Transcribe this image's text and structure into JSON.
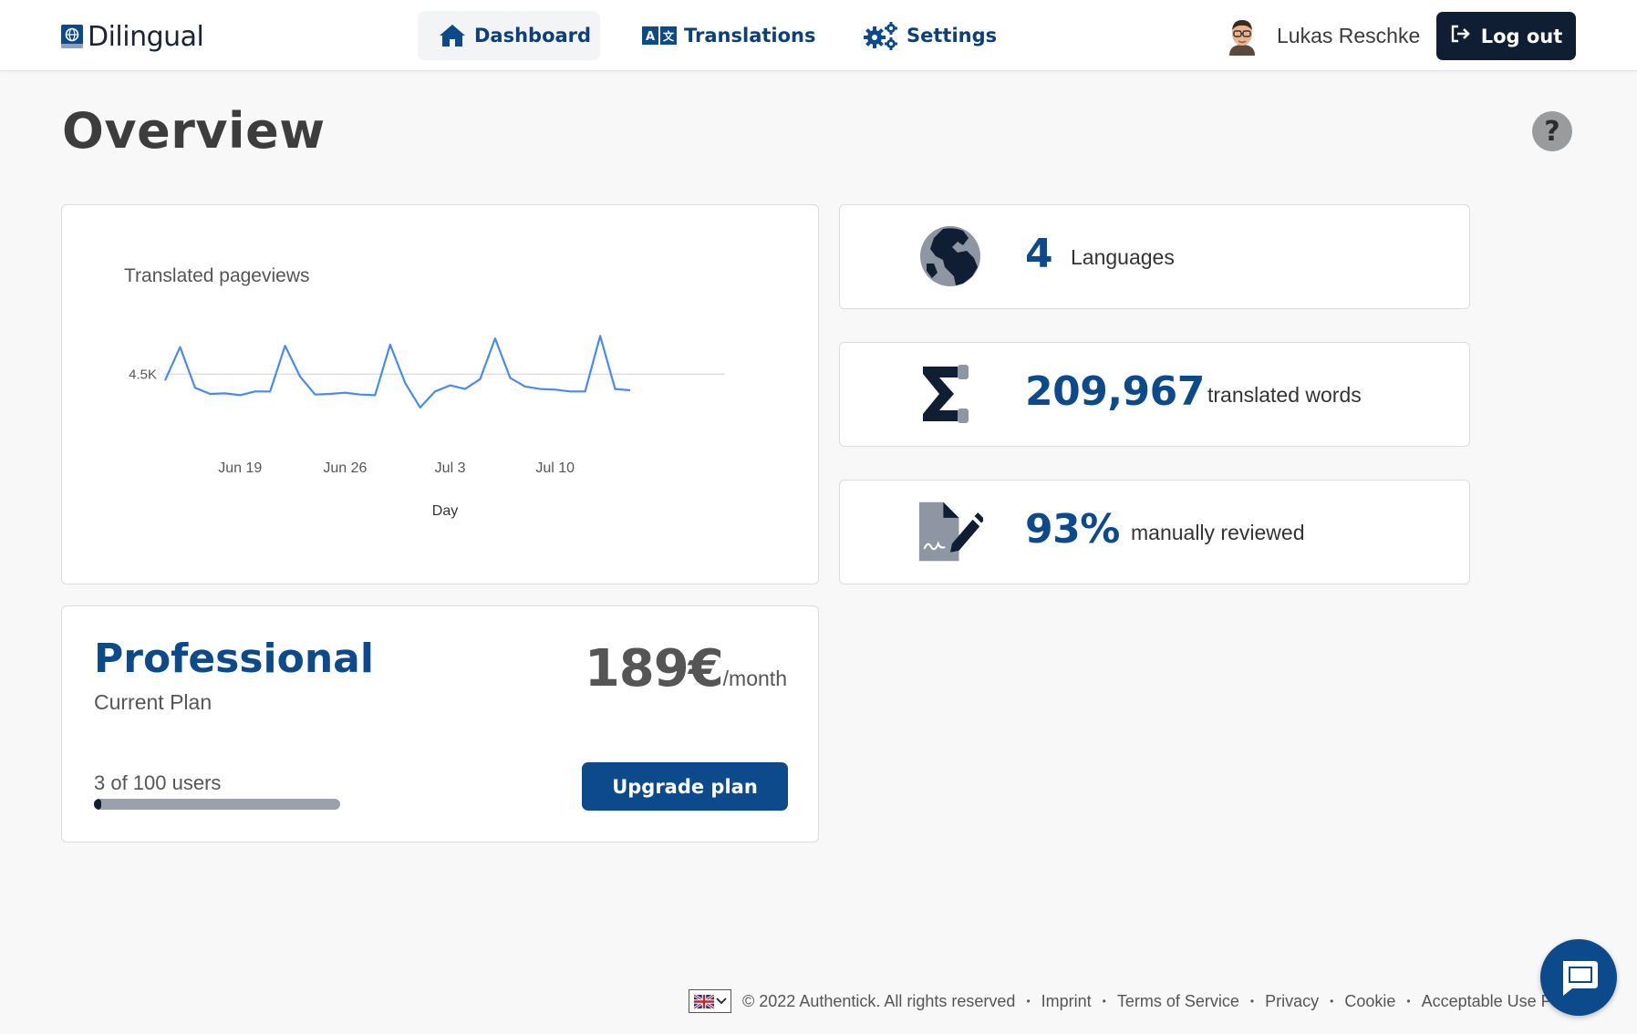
{
  "header": {
    "logo_text": "Dilingual",
    "nav": [
      {
        "label": "Dashboard",
        "icon": "home-icon",
        "active": true
      },
      {
        "label": "Translations",
        "icon": "translate-icon",
        "active": false
      },
      {
        "label": "Settings",
        "icon": "gears-icon",
        "active": false
      }
    ],
    "user_name": "Lukas Reschke",
    "logout_label": "Log out"
  },
  "page": {
    "title": "Overview",
    "help_label": "?"
  },
  "chart_card": {
    "title": "Translated pageviews"
  },
  "chart_data": {
    "type": "line",
    "title": "Translated pageviews",
    "xlabel": "Day",
    "ylabel": "",
    "x": [
      "Jun 14",
      "Jun 15",
      "Jun 16",
      "Jun 17",
      "Jun 18",
      "Jun 19",
      "Jun 20",
      "Jun 21",
      "Jun 22",
      "Jun 23",
      "Jun 24",
      "Jun 25",
      "Jun 26",
      "Jun 27",
      "Jun 28",
      "Jun 29",
      "Jun 30",
      "Jul 1",
      "Jul 2",
      "Jul 3",
      "Jul 4",
      "Jul 5",
      "Jul 6",
      "Jul 7",
      "Jul 8",
      "Jul 9",
      "Jul 10",
      "Jul 11",
      "Jul 12",
      "Jul 13",
      "Jul 14",
      "Jul 15"
    ],
    "values": [
      4450,
      4720,
      4390,
      4340,
      4345,
      4330,
      4360,
      4360,
      4730,
      4480,
      4335,
      4340,
      4350,
      4335,
      4330,
      4740,
      4430,
      4230,
      4360,
      4410,
      4380,
      4460,
      4790,
      4470,
      4400,
      4380,
      4375,
      4360,
      4360,
      4810,
      4380,
      4370
    ],
    "y_ticks": [
      {
        "value": 4500,
        "label": "4.5K"
      }
    ],
    "x_ticks": [
      "Jun 19",
      "Jun 26",
      "Jul 3",
      "Jul 10"
    ],
    "ylim": [
      4200,
      4850
    ],
    "grid": true,
    "series_color": "#4a89f0"
  },
  "stats": [
    {
      "icon": "globe-icon",
      "value": "4",
      "label": "Languages"
    },
    {
      "icon": "sigma-icon",
      "value": "209,967",
      "label": "translated words"
    },
    {
      "icon": "document-signature-icon",
      "value": "93%",
      "label": "manually reviewed"
    }
  ],
  "plan": {
    "name": "Professional",
    "subtitle": "Current Plan",
    "price": "189€",
    "period": "/month",
    "users_label": "3 of 100 users",
    "users_used": 3,
    "users_total": 100,
    "upgrade_label": "Upgrade plan"
  },
  "footer": {
    "language": "en-GB",
    "copyright": "© 2022 Authentick. All rights reserved",
    "links": [
      "Imprint",
      "Terms of Service",
      "Privacy",
      "Cookie",
      "Acceptable Use Policy"
    ]
  },
  "colors": {
    "brand_blue": "#0d4a8c",
    "dark_navy": "#0f1e33",
    "chart_line": "#4a89f0"
  }
}
